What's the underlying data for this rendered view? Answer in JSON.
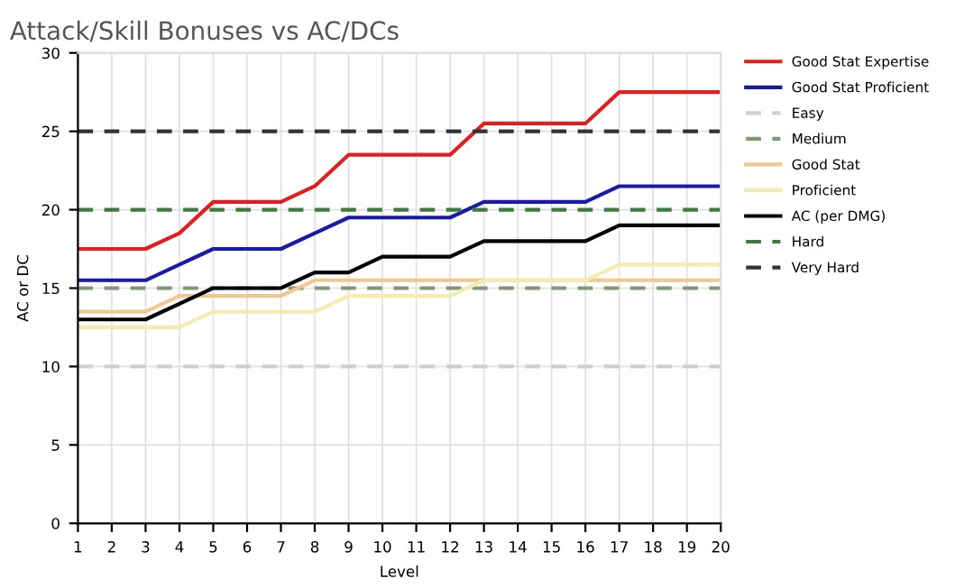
{
  "chart_data": {
    "type": "line",
    "title": "Attack/Skill Bonuses vs AC/DCs",
    "xlabel": "Level",
    "ylabel": "AC or DC",
    "x": [
      1,
      2,
      3,
      4,
      5,
      6,
      7,
      8,
      9,
      10,
      11,
      12,
      13,
      14,
      15,
      16,
      17,
      18,
      19,
      20
    ],
    "xlim": [
      1,
      20
    ],
    "xticks": [
      1,
      2,
      3,
      4,
      5,
      6,
      7,
      8,
      9,
      10,
      11,
      12,
      13,
      14,
      15,
      16,
      17,
      18,
      19,
      20
    ],
    "ylim": [
      0,
      30
    ],
    "yticks": [
      0,
      5,
      10,
      15,
      20,
      25,
      30
    ],
    "grid": true,
    "legend": "right",
    "marker": "none",
    "series": [
      {
        "name": "Good Stat Expertise",
        "color": "#e02020",
        "line_style": "solid",
        "values": [
          17.5,
          17.5,
          17.5,
          18.5,
          20.5,
          20.5,
          20.5,
          21.5,
          23.5,
          23.5,
          23.5,
          23.5,
          25.5,
          25.5,
          25.5,
          25.5,
          27.5,
          27.5,
          27.5,
          27.5
        ]
      },
      {
        "name": "Good Stat Proficient",
        "color": "#1a1aa8",
        "line_style": "solid",
        "values": [
          15.5,
          15.5,
          15.5,
          16.5,
          17.5,
          17.5,
          17.5,
          18.5,
          19.5,
          19.5,
          19.5,
          19.5,
          20.5,
          20.5,
          20.5,
          20.5,
          21.5,
          21.5,
          21.5,
          21.5
        ]
      },
      {
        "name": "Easy",
        "color": "#cfcfcf",
        "line_style": "dashed",
        "values": [
          10,
          10,
          10,
          10,
          10,
          10,
          10,
          10,
          10,
          10,
          10,
          10,
          10,
          10,
          10,
          10,
          10,
          10,
          10,
          10
        ]
      },
      {
        "name": "Medium",
        "color": "#7f9a70",
        "line_style": "dashed",
        "values": [
          15,
          15,
          15,
          15,
          15,
          15,
          15,
          15,
          15,
          15,
          15,
          15,
          15,
          15,
          15,
          15,
          15,
          15,
          15,
          15
        ]
      },
      {
        "name": "Good Stat",
        "color": "#f0c890",
        "line_style": "solid",
        "values": [
          13.5,
          13.5,
          13.5,
          14.5,
          14.5,
          14.5,
          14.5,
          15.5,
          15.5,
          15.5,
          15.5,
          15.5,
          15.5,
          15.5,
          15.5,
          15.5,
          15.5,
          15.5,
          15.5,
          15.5
        ]
      },
      {
        "name": "Proficient",
        "color": "#f5eab0",
        "line_style": "solid",
        "values": [
          12.5,
          12.5,
          12.5,
          12.5,
          13.5,
          13.5,
          13.5,
          13.5,
          14.5,
          14.5,
          14.5,
          14.5,
          15.5,
          15.5,
          15.5,
          15.5,
          16.5,
          16.5,
          16.5,
          16.5
        ]
      },
      {
        "name": "AC (per DMG)",
        "color": "#000000",
        "line_style": "solid",
        "values": [
          13,
          13,
          13,
          14,
          15,
          15,
          15,
          16,
          16,
          17,
          17,
          17,
          18,
          18,
          18,
          18,
          19,
          19,
          19,
          19
        ]
      },
      {
        "name": "Hard",
        "color": "#3d7a3d",
        "line_style": "dashed",
        "values": [
          20,
          20,
          20,
          20,
          20,
          20,
          20,
          20,
          20,
          20,
          20,
          20,
          20,
          20,
          20,
          20,
          20,
          20,
          20,
          20
        ]
      },
      {
        "name": "Very Hard",
        "color": "#333333",
        "line_style": "dashed",
        "values": [
          25,
          25,
          25,
          25,
          25,
          25,
          25,
          25,
          25,
          25,
          25,
          25,
          25,
          25,
          25,
          25,
          25,
          25,
          25,
          25
        ]
      }
    ]
  }
}
